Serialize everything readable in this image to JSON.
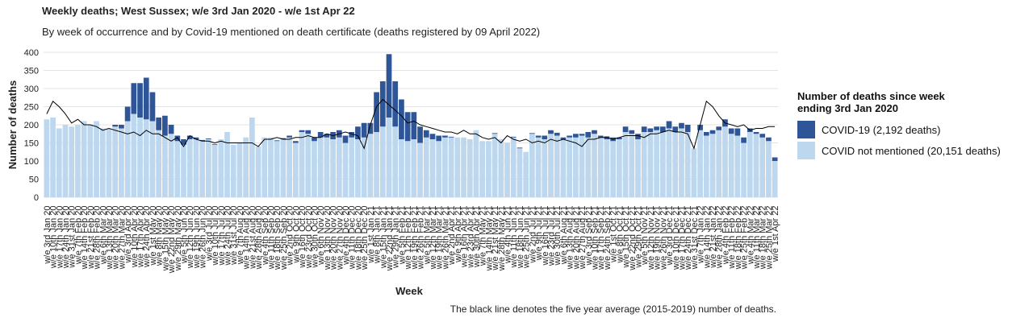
{
  "chart_data": {
    "type": "stacked-bar",
    "title": "Weekly deaths; West Sussex; w/e 3rd Jan 2020 - w/e 1st Apr 22",
    "subtitle": "By week of occurrence and by Covid-19 mentioned on death certificate (deaths registered by 09 April 2022)",
    "x_label": "Week",
    "y_label": "Number of deaths",
    "legend_title": "Number of deaths since week ending 3rd Jan 2020",
    "note": "The black line denotes the five year average (2015-2019) number of deaths.",
    "categories": [
      "w/e 3rd Jan 20",
      "w/e 10th Jan 20",
      "w/e 17th Jan 20",
      "w/e 24th Jan 20",
      "w/e 31st Jan 20",
      "w/e 7th Feb 20",
      "w/e 14th Feb 20",
      "w/e 21st Feb 20",
      "w/e 28th Feb 20",
      "w/e 6th Mar 20",
      "w/e 13th Mar 20",
      "w/e 20th Mar 20",
      "w/e 27th Mar 20",
      "w/e 3rd Apr 20",
      "w/e 10th Apr 20",
      "w/e 17th Apr 20",
      "w/e 24th Apr 20",
      "w/e 1st May 20",
      "w/e 8th May 20",
      "w/e 15th May 20",
      "w/e 22nd May 20",
      "w/e 29th May 20",
      "w/e 5th Jun 20",
      "w/e 12th Jun 20",
      "w/e 19th Jun 20",
      "w/e 26th Jun 20",
      "w/e 3rd Jul 20",
      "w/e 10th Jul 20",
      "w/e 17th Jul 20",
      "w/e 24th Jul 20",
      "w/e 31st Jul 20",
      "w/e 7th Aug 20",
      "w/e 14th Aug 20",
      "w/e 21st Aug 20",
      "w/e 28th Aug 20",
      "w/e 4th Sep 20",
      "w/e 11th Sep 20",
      "w/e 18th Sep 20",
      "w/e 25th Sep 20",
      "w/e 2nd Oct 20",
      "w/e 9th Oct 20",
      "w/e 16th Oct 20",
      "w/e 23rd Oct 20",
      "w/e 30th Oct 20",
      "w/e 6th Nov 20",
      "w/e 13th Nov 20",
      "w/e 20th Nov 20",
      "w/e 27th Nov 20",
      "w/e 4th Dec 20",
      "w/e 11th Dec 20",
      "w/e 18th Dec 20",
      "w/e 25th Dec 20",
      "w/e 1st Jan 21",
      "w/e 8th Jan 21",
      "w/e 15th Jan 21",
      "w/e 22nd Jan 21",
      "w/e 29th Jan 21",
      "w/e 5th Feb 21",
      "w/e 12th Feb 21",
      "w/e 19th Feb 21",
      "w/e 26th Feb 21",
      "w/e 5th Mar 21",
      "w/e 12th Mar 21",
      "w/e 19th Mar 21",
      "w/e 26th Mar 21",
      "w/e 2nd Apr 21",
      "w/e 9th Apr 21",
      "w/e 16th Apr 21",
      "w/e 23rd Apr 21",
      "w/e 30th Apr 21",
      "w/e 7th May 21",
      "w/e 14th May 21",
      "w/e 21st May 21",
      "w/e 28th May 21",
      "w/e 4th Jun 21",
      "w/e 11th Jun 21",
      "w/e 18th Jun 21",
      "w/e 25th Jun 21",
      "w/e 2nd Jul 21",
      "w/e 9th Jul 21",
      "w/e 16th Jul 21",
      "w/e 23rd Jul 21",
      "w/e 30th Jul 21",
      "w/e 6th Aug 21",
      "w/e 13th Aug 21",
      "w/e 20th Aug 21",
      "w/e 27th Aug 21",
      "w/e 3rd Sep 21",
      "w/e 10th Sep 21",
      "w/e 17th Sep 21",
      "w/e 24th Sep 21",
      "w/e 1st Oct 21",
      "w/e 8th Oct 21",
      "w/e 15th Oct 21",
      "w/e 22nd Oct 21",
      "w/e 29th Oct 21",
      "w/e 5th Nov 21",
      "w/e 12th Nov 21",
      "w/e 19th Nov 21",
      "w/e 26th Nov 21",
      "w/e 3rd Dec 21",
      "w/e 10th Dec 21",
      "w/e 17th Dec 21",
      "w/e 24th Dec 21",
      "w/e 31st Dec 21",
      "w/e 7th Jan 22",
      "w/e 14th Jan 22",
      "w/e 21st Jan 22",
      "w/e 28th Jan 22",
      "w/e 4th Feb 22",
      "w/e 11th Feb 22",
      "w/e 18th Feb 22",
      "w/e 25th Feb 22",
      "w/e 4th Mar 22",
      "w/e 11th Mar 22",
      "w/e 18th Mar 22",
      "w/e 25th Mar 22",
      "w/e 1st Apr 22"
    ],
    "series": [
      {
        "name": "COVID-19 (2,192 deaths)",
        "color": "#2e5597",
        "values": [
          0,
          0,
          0,
          0,
          0,
          0,
          0,
          0,
          0,
          0,
          0,
          5,
          10,
          40,
          85,
          95,
          115,
          80,
          35,
          55,
          25,
          15,
          15,
          10,
          5,
          3,
          2,
          2,
          0,
          0,
          0,
          0,
          0,
          0,
          0,
          0,
          0,
          2,
          3,
          5,
          5,
          5,
          10,
          10,
          15,
          10,
          20,
          20,
          20,
          15,
          35,
          40,
          30,
          110,
          125,
          175,
          125,
          110,
          80,
          75,
          45,
          20,
          15,
          15,
          5,
          2,
          0,
          0,
          0,
          0,
          0,
          0,
          2,
          0,
          0,
          2,
          2,
          0,
          2,
          5,
          10,
          10,
          8,
          5,
          5,
          10,
          5,
          15,
          10,
          5,
          8,
          10,
          5,
          15,
          10,
          15,
          15,
          10,
          10,
          15,
          20,
          15,
          15,
          20,
          0,
          15,
          10,
          10,
          10,
          20,
          15,
          20,
          15,
          10,
          5,
          10,
          10,
          10
        ]
      },
      {
        "name": "COVID not mentioned (20,151 deaths)",
        "color": "#bdd7ee",
        "values": [
          215,
          220,
          190,
          200,
          195,
          200,
          210,
          200,
          210,
          190,
          190,
          195,
          190,
          210,
          230,
          220,
          215,
          210,
          185,
          170,
          175,
          155,
          145,
          160,
          160,
          155,
          160,
          145,
          160,
          180,
          145,
          150,
          165,
          220,
          140,
          165,
          165,
          155,
          160,
          165,
          150,
          180,
          175,
          155,
          165,
          165,
          160,
          165,
          150,
          165,
          160,
          165,
          175,
          180,
          195,
          220,
          195,
          160,
          155,
          160,
          150,
          165,
          160,
          155,
          165,
          165,
          165,
          165,
          160,
          185,
          155,
          155,
          175,
          160,
          150,
          165,
          135,
          125,
          175,
          165,
          160,
          175,
          170,
          160,
          165,
          165,
          170,
          165,
          175,
          165,
          160,
          155,
          160,
          180,
          175,
          160,
          180,
          180,
          185,
          180,
          190,
          180,
          190,
          180,
          135,
          185,
          170,
          175,
          185,
          195,
          175,
          170,
          150,
          180,
          175,
          165,
          155,
          100
        ]
      }
    ],
    "five_year_average": {
      "color": "#000000",
      "values": [
        230,
        265,
        250,
        230,
        205,
        215,
        200,
        200,
        195,
        185,
        190,
        185,
        180,
        175,
        180,
        170,
        185,
        175,
        175,
        165,
        155,
        165,
        140,
        170,
        160,
        155,
        155,
        150,
        155,
        150,
        150,
        150,
        150,
        150,
        140,
        160,
        160,
        165,
        160,
        160,
        165,
        165,
        170,
        165,
        165,
        175,
        170,
        175,
        180,
        175,
        170,
        135,
        200,
        250,
        270,
        255,
        240,
        225,
        205,
        210,
        200,
        195,
        190,
        185,
        180,
        180,
        175,
        185,
        175,
        175,
        165,
        160,
        165,
        150,
        170,
        160,
        155,
        160,
        150,
        155,
        150,
        160,
        155,
        160,
        155,
        150,
        140,
        160,
        160,
        165,
        165,
        160,
        165,
        170,
        170,
        170,
        165,
        175,
        175,
        180,
        185,
        180,
        180,
        175,
        135,
        200,
        265,
        250,
        225,
        205,
        200,
        195,
        200,
        185,
        190,
        190,
        195,
        195
      ]
    },
    "ylim": [
      -10,
      420
    ],
    "yticks": [
      0,
      50,
      100,
      150,
      200,
      250,
      300,
      350,
      400
    ],
    "grid": true
  }
}
